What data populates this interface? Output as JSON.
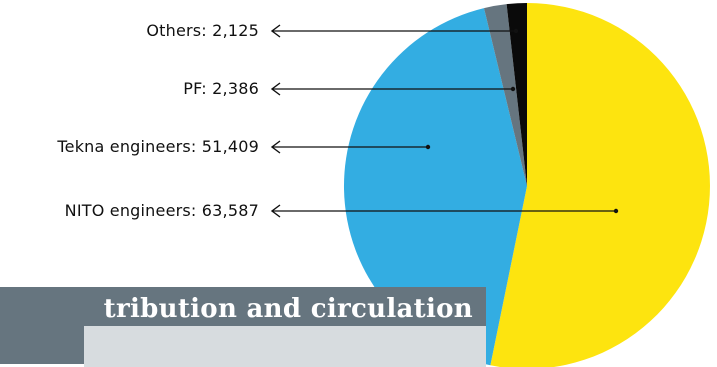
{
  "banner": {
    "title": "tribution and circulation"
  },
  "chart_data": {
    "type": "pie",
    "start_angle_deg": 0,
    "direction": "clockwise",
    "slices": [
      {
        "label": "NITO engineers: 63,587",
        "name": "NITO engineers",
        "value": 63587,
        "color": "#fde40f"
      },
      {
        "label": "Tekna engineers: 51,409",
        "name": "Tekna engineers",
        "value": 51409,
        "color": "#33ade2"
      },
      {
        "label": "PF: 2,386",
        "name": "PF",
        "value": 2386,
        "color": "#66757f"
      },
      {
        "label": "Others: 2,125",
        "name": "Others",
        "value": 2125,
        "color": "#0a0a0a"
      }
    ],
    "legend_placement": "left"
  },
  "colors": {
    "banner": "#66757f",
    "banner_sub": "#d7dcdf",
    "leader_line": "#111111"
  }
}
